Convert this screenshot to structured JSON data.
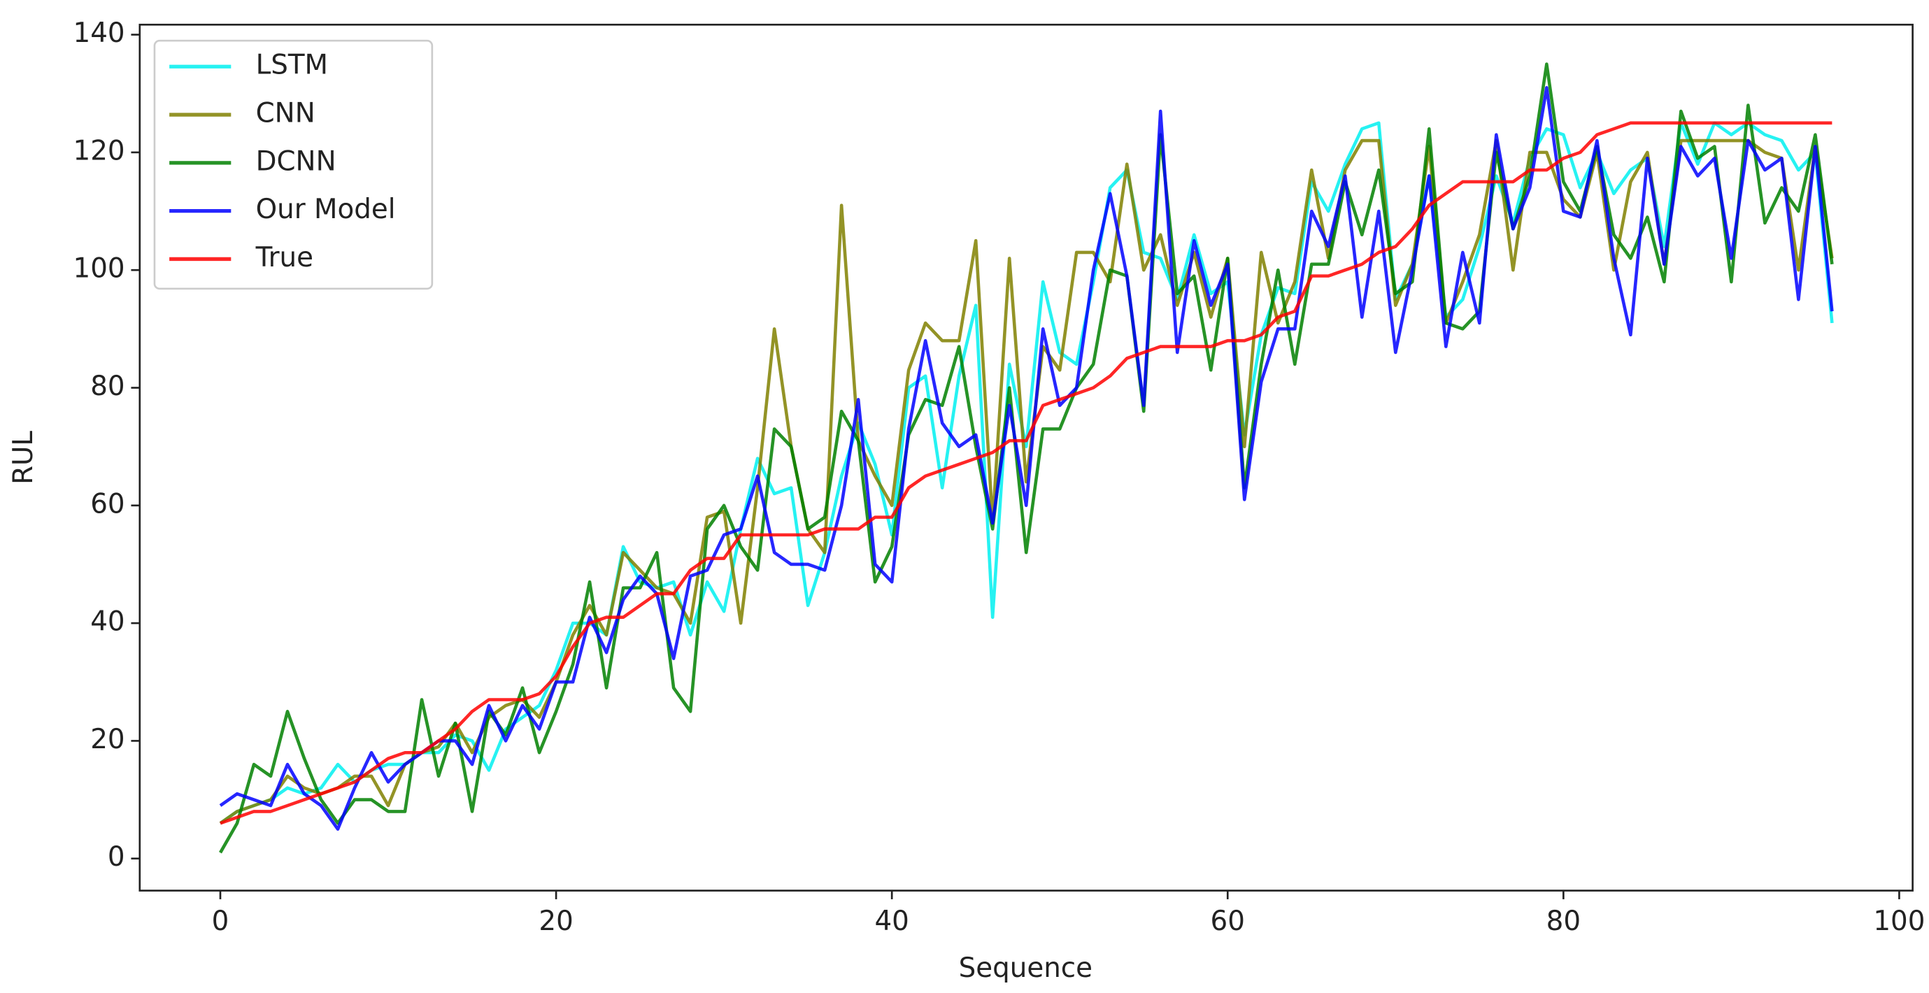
{
  "chart_data": {
    "type": "line",
    "xlabel": "Sequence",
    "ylabel": "RUL",
    "x": [
      0,
      1,
      2,
      3,
      4,
      5,
      6,
      7,
      8,
      9,
      10,
      11,
      12,
      13,
      14,
      15,
      16,
      17,
      18,
      19,
      20,
      21,
      22,
      23,
      24,
      25,
      26,
      27,
      28,
      29,
      30,
      31,
      32,
      33,
      34,
      35,
      36,
      37,
      38,
      39,
      40,
      41,
      42,
      43,
      44,
      45,
      46,
      47,
      48,
      49,
      50,
      51,
      52,
      53,
      54,
      55,
      56,
      57,
      58,
      59,
      60,
      61,
      62,
      63,
      64,
      65,
      66,
      67,
      68,
      69,
      70,
      71,
      72,
      73,
      74,
      75,
      76,
      77,
      78,
      79,
      80,
      81,
      82,
      83,
      84,
      85,
      86,
      87,
      88,
      89,
      90,
      91,
      92,
      93,
      94,
      95,
      96
    ],
    "series": [
      {
        "name": "LSTM",
        "color": "#00f0f0",
        "values": [
          6,
          8,
          9,
          10,
          12,
          11,
          12,
          16,
          13,
          15,
          16,
          16,
          18,
          18,
          21,
          20,
          15,
          22,
          24,
          26,
          32,
          40,
          40,
          38,
          53,
          47,
          46,
          47,
          38,
          47,
          42,
          56,
          68,
          62,
          63,
          43,
          52,
          65,
          74,
          67,
          55,
          80,
          82,
          63,
          82,
          94,
          41,
          84,
          70,
          98,
          86,
          84,
          98,
          114,
          117,
          103,
          102,
          95,
          106,
          96,
          98,
          72,
          89,
          97,
          96,
          115,
          110,
          118,
          124,
          125,
          95,
          101,
          116,
          92,
          95,
          104,
          116,
          108,
          119,
          124,
          123,
          114,
          120,
          113,
          117,
          119,
          104,
          125,
          118,
          125,
          123,
          125,
          123,
          122,
          117,
          120,
          91
        ]
      },
      {
        "name": "CNN",
        "color": "#808000",
        "values": [
          6,
          8,
          9,
          10,
          14,
          12,
          11,
          12,
          14,
          14,
          9,
          16,
          18,
          19,
          23,
          18,
          24,
          26,
          27,
          24,
          30,
          38,
          43,
          38,
          52,
          49,
          46,
          45,
          40,
          58,
          59,
          40,
          63,
          90,
          70,
          56,
          52,
          111,
          71,
          65,
          60,
          83,
          91,
          88,
          88,
          105,
          57,
          102,
          64,
          87,
          83,
          103,
          103,
          98,
          118,
          100,
          106,
          94,
          103,
          92,
          102,
          70,
          103,
          91,
          98,
          117,
          102,
          117,
          122,
          122,
          94,
          101,
          121,
          91,
          98,
          106,
          122,
          100,
          120,
          120,
          112,
          109,
          120,
          100,
          115,
          120,
          101,
          122,
          122,
          122,
          122,
          122,
          120,
          119,
          100,
          121,
          102
        ]
      },
      {
        "name": "DCNN",
        "color": "#008000",
        "values": [
          1,
          6,
          16,
          14,
          25,
          17,
          10,
          6,
          10,
          10,
          8,
          8,
          27,
          14,
          23,
          8,
          25,
          21,
          29,
          18,
          25,
          33,
          47,
          29,
          46,
          46,
          52,
          29,
          25,
          56,
          60,
          53,
          49,
          73,
          70,
          56,
          58,
          76,
          71,
          47,
          53,
          72,
          78,
          77,
          87,
          70,
          56,
          80,
          52,
          73,
          73,
          80,
          84,
          100,
          99,
          76,
          123,
          96,
          99,
          83,
          102,
          63,
          84,
          100,
          84,
          101,
          101,
          115,
          106,
          117,
          96,
          98,
          124,
          91,
          90,
          93,
          120,
          107,
          116,
          135,
          115,
          110,
          121,
          106,
          102,
          109,
          98,
          127,
          119,
          121,
          98,
          128,
          108,
          114,
          110,
          123,
          101
        ]
      },
      {
        "name": "Our Model",
        "color": "#0000ff",
        "values": [
          9,
          11,
          10,
          9,
          16,
          11,
          9,
          5,
          12,
          18,
          13,
          16,
          18,
          20,
          20,
          16,
          26,
          20,
          26,
          22,
          30,
          30,
          41,
          35,
          44,
          48,
          45,
          34,
          48,
          49,
          55,
          56,
          65,
          52,
          50,
          50,
          49,
          60,
          78,
          50,
          47,
          73,
          88,
          74,
          70,
          72,
          57,
          77,
          60,
          90,
          77,
          80,
          100,
          113,
          99,
          77,
          127,
          86,
          105,
          94,
          101,
          61,
          81,
          90,
          90,
          110,
          104,
          116,
          92,
          110,
          86,
          100,
          116,
          87,
          103,
          91,
          123,
          107,
          114,
          131,
          110,
          109,
          122,
          102,
          89,
          119,
          101,
          121,
          116,
          119,
          102,
          122,
          117,
          119,
          95,
          121,
          93
        ]
      },
      {
        "name": "True",
        "color": "#ff0000",
        "values": [
          6,
          7,
          8,
          8,
          9,
          10,
          11,
          12,
          13,
          15,
          17,
          18,
          18,
          20,
          22,
          25,
          27,
          27,
          27,
          28,
          31,
          36,
          40,
          41,
          41,
          43,
          45,
          45,
          49,
          51,
          51,
          55,
          55,
          55,
          55,
          55,
          56,
          56,
          56,
          58,
          58,
          63,
          65,
          66,
          67,
          68,
          69,
          71,
          71,
          77,
          78,
          79,
          80,
          82,
          85,
          86,
          87,
          87,
          87,
          87,
          88,
          88,
          89,
          92,
          93,
          99,
          99,
          100,
          101,
          103,
          104,
          107,
          111,
          113,
          115,
          115,
          115,
          115,
          117,
          117,
          119,
          120,
          123,
          124,
          125,
          125,
          125,
          125,
          125,
          125,
          125,
          125,
          125,
          125,
          125,
          125,
          125
        ]
      }
    ],
    "xlim": [
      -4.8,
      100.8
    ],
    "xticks": [
      0,
      20,
      40,
      60,
      80,
      100
    ],
    "ylim": [
      -5.45,
      141.7
    ],
    "yticks": [
      0,
      20,
      40,
      60,
      80,
      100,
      120,
      140
    ],
    "legend": "upper left"
  }
}
